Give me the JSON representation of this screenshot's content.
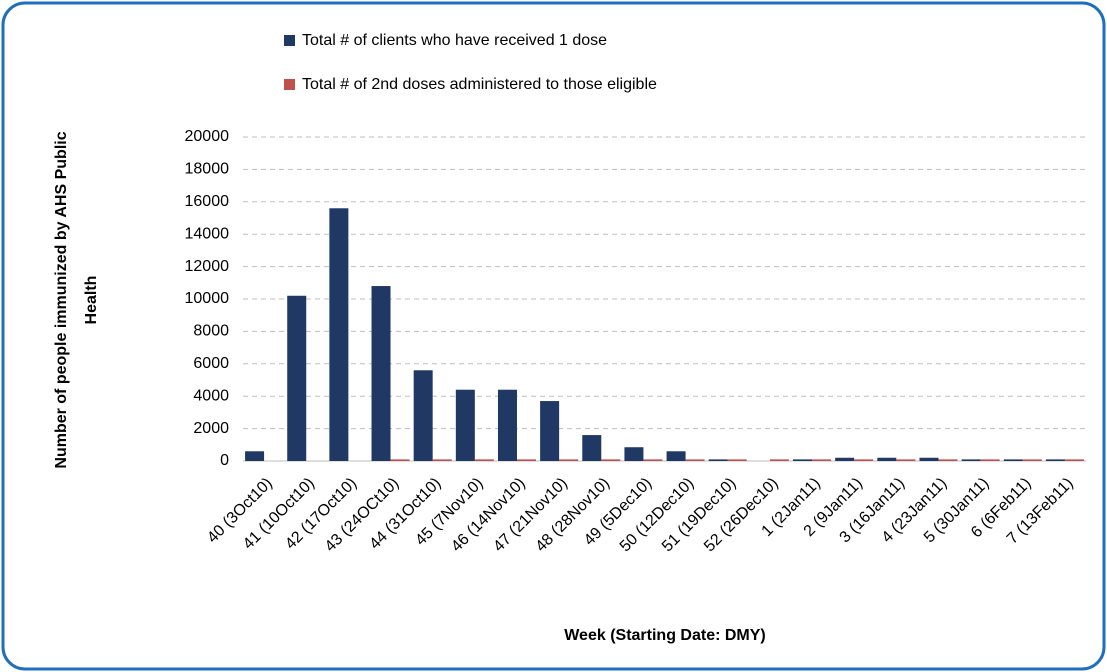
{
  "chart_data": {
    "type": "bar",
    "xlabel": "Week (Starting Date: DMY)",
    "ylabel": [
      "Number of people immunized by AHS Public",
      "Health"
    ],
    "categories": [
      "40 (3Oct10)",
      "41 (10Oct10)",
      "42 (17Oct10)",
      "43 (24OCt10)",
      "44 (31Oct10)",
      "45 (7Nov10)",
      "46 (14Nov10)",
      "47 (21Nov10)",
      "48 (28Nov10)",
      "49 (5Dec10)",
      "50 (12Dec10)",
      "51 (19Dec10)",
      "52 (26Dec10)",
      "1 (2Jan11)",
      "2 (9Jan11)",
      "3 (16Jan11)",
      "4 (23Jan11)",
      "5 (30Jan11)",
      "6 (6Feb11)",
      "7 (13Feb11)"
    ],
    "series": [
      {
        "name": "Total # of clients who have received 1 dose",
        "color": "#1f3864",
        "values": [
          600,
          10200,
          15600,
          10800,
          5600,
          4400,
          4400,
          3700,
          1600,
          850,
          600,
          100,
          0,
          100,
          200,
          200,
          200,
          100,
          100,
          100
        ]
      },
      {
        "name": "Total # of 2nd doses administered to those eligible",
        "color": "#c0504d",
        "values": [
          0,
          0,
          0,
          100,
          100,
          100,
          100,
          100,
          100,
          100,
          100,
          100,
          100,
          100,
          100,
          100,
          100,
          100,
          100,
          100
        ]
      }
    ],
    "ylim": [
      0,
      20000
    ],
    "yticks": [
      0,
      2000,
      4000,
      6000,
      8000,
      10000,
      12000,
      14000,
      16000,
      18000,
      20000
    ],
    "grid": true,
    "legend": "top"
  }
}
